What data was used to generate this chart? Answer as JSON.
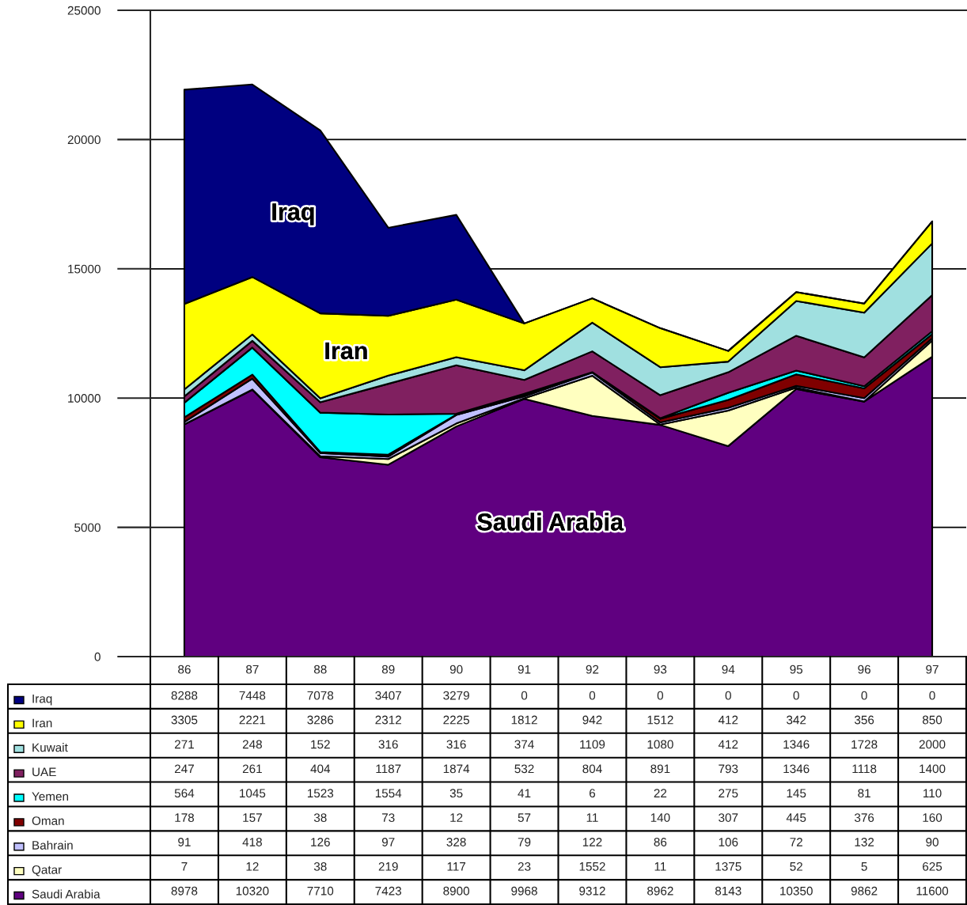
{
  "chart_data": {
    "type": "area",
    "stacked": true,
    "categories": [
      "86",
      "87",
      "88",
      "89",
      "90",
      "91",
      "92",
      "93",
      "94",
      "95",
      "96",
      "97"
    ],
    "series": [
      {
        "name": "Saudi Arabia",
        "color": "#600080",
        "values": [
          8978,
          10320,
          7710,
          7423,
          8900,
          9968,
          9312,
          8962,
          8143,
          10350,
          9862,
          11600
        ]
      },
      {
        "name": "Qatar",
        "color": "#ffffc0",
        "values": [
          7,
          12,
          38,
          219,
          117,
          23,
          1552,
          11,
          1375,
          52,
          5,
          625
        ]
      },
      {
        "name": "Bahrain",
        "color": "#c0c0ff",
        "values": [
          91,
          418,
          126,
          97,
          328,
          79,
          122,
          86,
          106,
          72,
          132,
          90
        ]
      },
      {
        "name": "Oman",
        "color": "#800000",
        "values": [
          178,
          157,
          38,
          73,
          12,
          57,
          11,
          140,
          307,
          445,
          376,
          160
        ]
      },
      {
        "name": "Yemen",
        "color": "#00ffff",
        "values": [
          564,
          1045,
          1523,
          1554,
          35,
          41,
          6,
          22,
          275,
          145,
          81,
          110
        ]
      },
      {
        "name": "UAE",
        "color": "#802060",
        "values": [
          247,
          261,
          404,
          1187,
          1874,
          532,
          804,
          891,
          793,
          1346,
          1118,
          1400
        ]
      },
      {
        "name": "Kuwait",
        "color": "#a0e0e0",
        "values": [
          271,
          248,
          152,
          316,
          316,
          374,
          1109,
          1080,
          412,
          1346,
          1728,
          2000
        ]
      },
      {
        "name": "Iran",
        "color": "#ffff00",
        "values": [
          3305,
          2221,
          3286,
          2312,
          2225,
          1812,
          942,
          1512,
          412,
          342,
          356,
          850
        ]
      },
      {
        "name": "Iraq",
        "color": "#000080",
        "values": [
          8288,
          7448,
          7078,
          3407,
          3279,
          0,
          0,
          0,
          0,
          0,
          0,
          0
        ]
      }
    ],
    "ylim": [
      0,
      25000
    ],
    "yticks": [
      0,
      5000,
      10000,
      15000,
      20000,
      25000
    ],
    "grid": "y",
    "legend": "bottom",
    "data_labels": true,
    "annotations": [
      "Iraq",
      "Iran",
      "Saudi Arabia"
    ]
  }
}
